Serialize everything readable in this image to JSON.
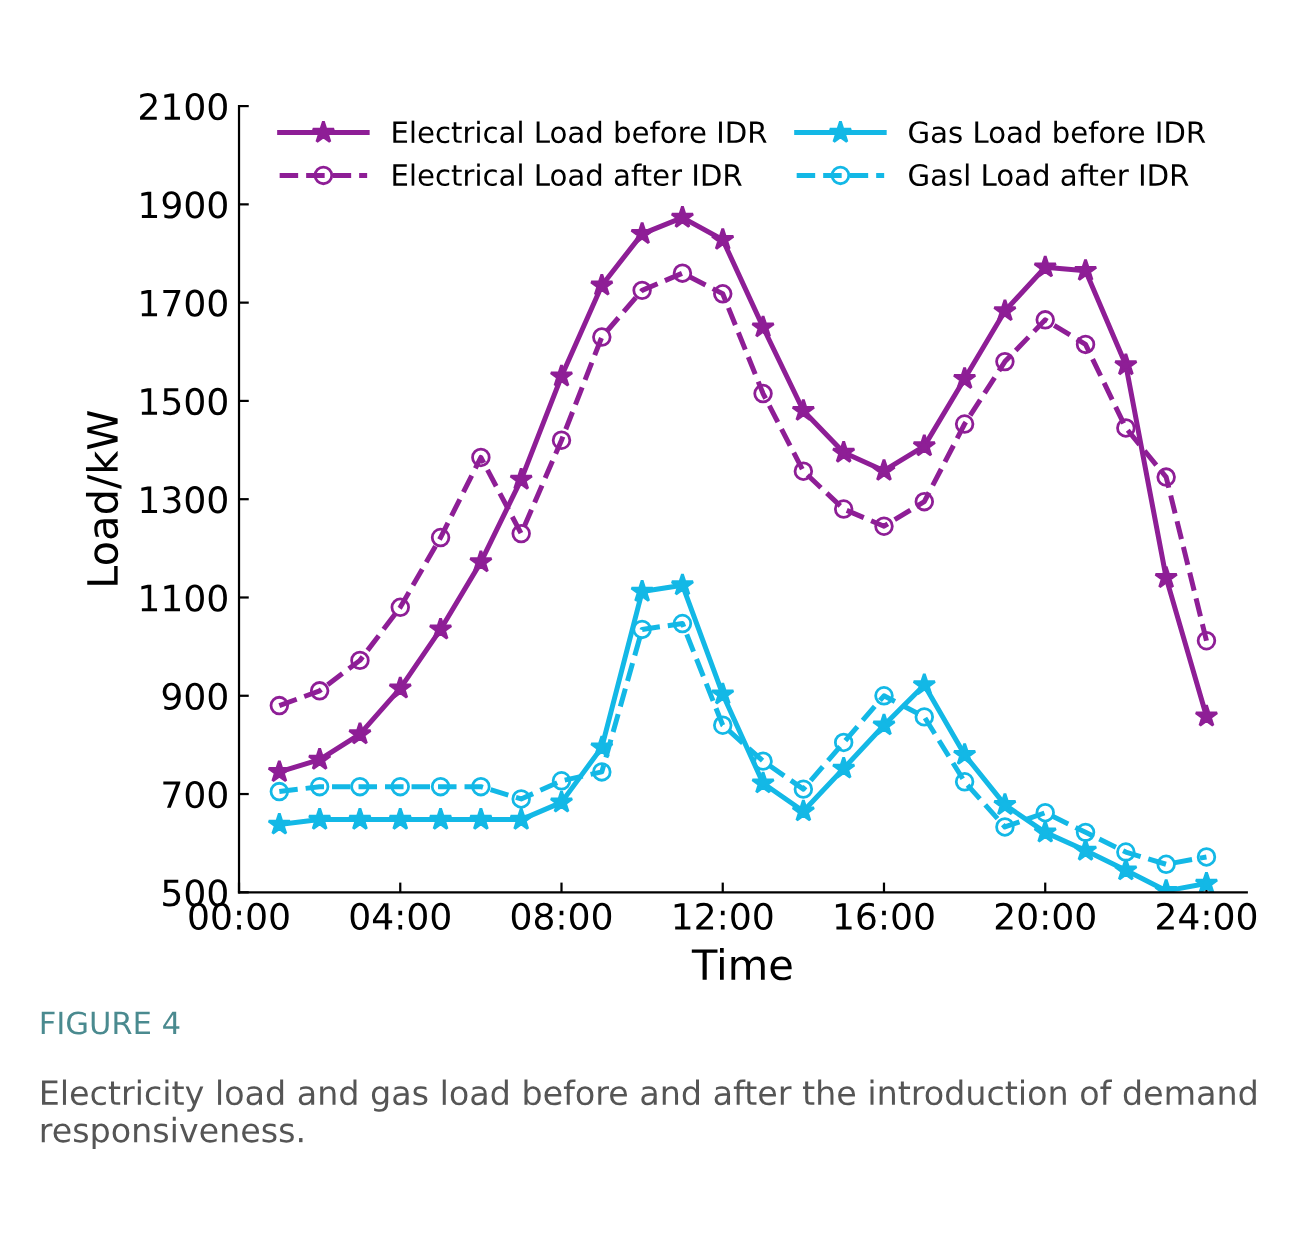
{
  "chart_data": {
    "type": "line",
    "xlabel": "Time",
    "ylabel": "Load/kW",
    "x": [
      1,
      2,
      3,
      4,
      5,
      6,
      7,
      8,
      9,
      10,
      11,
      12,
      13,
      14,
      15,
      16,
      17,
      18,
      19,
      20,
      21,
      22,
      23,
      24
    ],
    "xlim": [
      0,
      25
    ],
    "xticks": [
      {
        "value": 0,
        "label": "00:00"
      },
      {
        "value": 4,
        "label": "04:00"
      },
      {
        "value": 8,
        "label": "08:00"
      },
      {
        "value": 12,
        "label": "12:00"
      },
      {
        "value": 16,
        "label": "16:00"
      },
      {
        "value": 20,
        "label": "20:00"
      },
      {
        "value": 24,
        "label": "24:00"
      }
    ],
    "ylim": [
      500,
      2100
    ],
    "yticks": [
      500,
      700,
      900,
      1100,
      1300,
      1500,
      1700,
      1900,
      2100
    ],
    "grid": false,
    "legend": "top",
    "series": [
      {
        "name": "Electrical Load before IDR",
        "color": "#8e1e96",
        "marker": "star",
        "line_style": "solid",
        "values": [
          745,
          770,
          822,
          915,
          1035,
          1172,
          1340,
          1550,
          1735,
          1840,
          1873,
          1828,
          1650,
          1480,
          1395,
          1358,
          1408,
          1545,
          1683,
          1772,
          1765,
          1573,
          1140,
          858
        ]
      },
      {
        "name": "Electrical Load after IDR",
        "color": "#8e1e96",
        "marker": "circle",
        "line_style": "dashed",
        "values": [
          880,
          910,
          972,
          1080,
          1222,
          1385,
          1230,
          1420,
          1630,
          1725,
          1760,
          1718,
          1515,
          1357,
          1280,
          1245,
          1295,
          1453,
          1580,
          1665,
          1615,
          1445,
          1345,
          1012
        ]
      },
      {
        "name": "Gas Load before IDR",
        "color": "#13b8e6",
        "marker": "star",
        "line_style": "solid",
        "values": [
          638,
          648,
          648,
          648,
          648,
          648,
          648,
          683,
          795,
          1112,
          1125,
          903,
          722,
          665,
          752,
          840,
          922,
          780,
          678,
          622,
          585,
          545,
          503,
          518
        ]
      },
      {
        "name": "Gasl Load after IDR",
        "color": "#13b8e6",
        "marker": "circle",
        "line_style": "dashed",
        "values": [
          705,
          715,
          715,
          715,
          715,
          715,
          690,
          727,
          745,
          1035,
          1047,
          840,
          767,
          710,
          805,
          900,
          857,
          725,
          633,
          662,
          622,
          582,
          557,
          572
        ]
      }
    ],
    "annotations": [
      "FIGURE 4",
      "Electricity load and gas load before and after the introduction of demand responsiveness."
    ]
  }
}
